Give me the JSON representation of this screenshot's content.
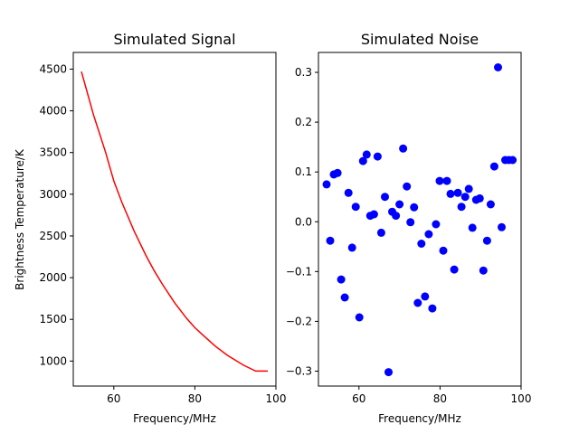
{
  "chart_data": [
    {
      "type": "line",
      "title": "Simulated Signal",
      "xlabel": "Frequency/MHz",
      "ylabel": "Brightness Temperature/K",
      "xlim": [
        50,
        100
      ],
      "ylim": [
        700,
        4700
      ],
      "xticks": [
        60,
        80,
        100
      ],
      "yticks": [
        1000,
        1500,
        2000,
        2500,
        3000,
        3500,
        4000,
        4500
      ],
      "xtick_labels": [
        "60",
        "80",
        "100"
      ],
      "ytick_labels": [
        "1000",
        "1500",
        "2000",
        "2500",
        "3000",
        "3500",
        "4000",
        "4500"
      ],
      "grid": false,
      "series": [
        {
          "color": "#ff0000",
          "x": [
            52,
            55,
            58,
            60,
            62,
            65,
            68,
            70,
            72,
            75,
            78,
            80,
            82,
            85,
            88,
            90,
            92,
            95,
            98
          ],
          "y": [
            4470,
            3950,
            3500,
            3160,
            2900,
            2560,
            2260,
            2080,
            1920,
            1700,
            1510,
            1400,
            1310,
            1180,
            1070,
            1010,
            950,
            880,
            880
          ]
        }
      ]
    },
    {
      "type": "scatter",
      "title": "Simulated Noise",
      "xlabel": "Frequency/MHz",
      "ylabel": "",
      "xlim": [
        50,
        100
      ],
      "ylim": [
        -0.33,
        0.34
      ],
      "xticks": [
        60,
        80,
        100
      ],
      "yticks": [
        -0.3,
        -0.2,
        -0.1,
        0.0,
        0.1,
        0.2,
        0.3
      ],
      "xtick_labels": [
        "60",
        "80",
        "100"
      ],
      "ytick_labels": [
        "−0.3",
        "−0.2",
        "−0.1",
        "0.0",
        "0.1",
        "0.2",
        "0.3"
      ],
      "grid": false,
      "series": [
        {
          "color": "#0000ff",
          "x": [
            52.0,
            52.9,
            53.8,
            54.7,
            55.6,
            56.5,
            57.4,
            58.3,
            59.2,
            60.1,
            61.0,
            61.9,
            62.8,
            63.7,
            64.6,
            65.5,
            66.4,
            67.3,
            68.2,
            69.1,
            70.0,
            70.9,
            71.8,
            72.7,
            73.6,
            74.5,
            75.4,
            76.3,
            77.2,
            78.1,
            79.0,
            79.9,
            80.8,
            81.7,
            82.6,
            83.5,
            84.4,
            85.3,
            86.2,
            87.1,
            88.0,
            88.9,
            89.8,
            90.7,
            91.6,
            92.5,
            93.4,
            94.3,
            95.2,
            96.1,
            97.0,
            97.9
          ],
          "y": [
            0.075,
            -0.038,
            0.095,
            0.098,
            -0.116,
            -0.152,
            0.058,
            -0.052,
            0.03,
            -0.192,
            0.122,
            0.135,
            0.012,
            0.015,
            0.131,
            -0.022,
            0.05,
            -0.302,
            0.02,
            0.012,
            0.035,
            0.147,
            0.071,
            -0.001,
            0.029,
            -0.163,
            -0.044,
            -0.15,
            -0.025,
            -0.174,
            -0.005,
            0.082,
            -0.058,
            0.082,
            0.056,
            -0.096,
            0.058,
            0.03,
            0.05,
            0.066,
            -0.012,
            0.044,
            0.047,
            -0.098,
            -0.038,
            0.035,
            0.111,
            0.31,
            -0.011,
            0.124,
            0.124,
            0.124
          ]
        }
      ]
    }
  ]
}
